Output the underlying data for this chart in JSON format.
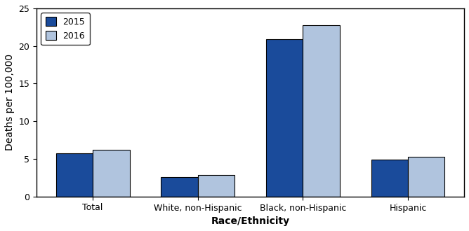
{
  "categories": [
    "Total",
    "White, non-Hispanic",
    "Black, non-Hispanic",
    "Hispanic"
  ],
  "values_2015": [
    5.7,
    2.6,
    20.9,
    4.9
  ],
  "values_2016": [
    6.2,
    2.9,
    22.8,
    5.3
  ],
  "color_2015": "#1a4b9b",
  "color_2016": "#b0c4de",
  "ylabel": "Deaths per 100,000",
  "xlabel": "Race/Ethnicity",
  "ylim": [
    0,
    25
  ],
  "yticks": [
    0,
    5,
    10,
    15,
    20,
    25
  ],
  "legend_labels": [
    "2015",
    "2016"
  ],
  "bar_width": 0.35,
  "background_color": "#ffffff",
  "edge_color": "#000000"
}
